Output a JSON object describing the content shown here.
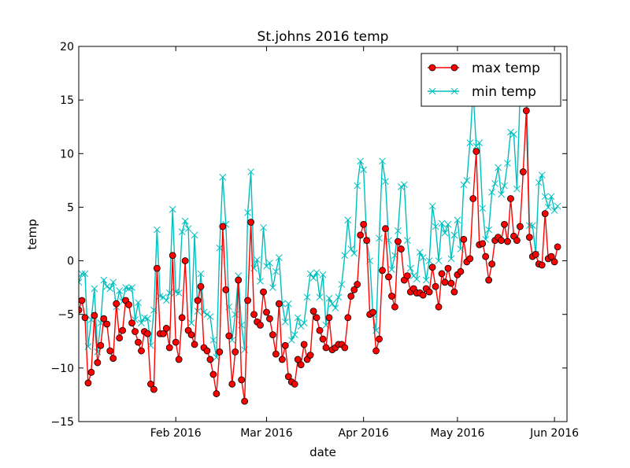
{
  "chart_data": {
    "type": "line",
    "title": "St.johns 2016 temp",
    "xlabel": "date",
    "ylabel": "temp",
    "xlim": [
      "2016-01-01",
      "2016-06-05"
    ],
    "ylim": [
      -15,
      20
    ],
    "yticks": [
      -15,
      -10,
      -5,
      0,
      5,
      10,
      15,
      20
    ],
    "xticks": [
      {
        "date": "2016-02-01",
        "label": "Feb 2016"
      },
      {
        "date": "2016-03-01",
        "label": "Mar 2016"
      },
      {
        "date": "2016-04-01",
        "label": "Apr 2016"
      },
      {
        "date": "2016-05-01",
        "label": "May 2016"
      },
      {
        "date": "2016-06-01",
        "label": "Jun 2016"
      }
    ],
    "grid": false,
    "legend_position": "top-right",
    "series": [
      {
        "name": "max temp",
        "color": "#ff0000",
        "marker": "circle",
        "start_date": "2016-01-01",
        "values": [
          -4.6,
          -3.7,
          -5.3,
          -11.4,
          -10.4,
          -5.1,
          -9.5,
          -7.9,
          -5.4,
          -5.9,
          -8.4,
          -9.1,
          -4.0,
          -7.2,
          -6.5,
          -3.7,
          -4.1,
          -5.8,
          -6.6,
          -7.6,
          -8.4,
          -6.6,
          -6.8,
          -11.5,
          -12.0,
          -0.7,
          -6.8,
          -6.8,
          -6.3,
          -8.1,
          0.5,
          -7.6,
          -9.2,
          -5.3,
          0.0,
          -6.5,
          -6.9,
          -7.8,
          -3.7,
          -2.4,
          -8.1,
          -8.4,
          -9.2,
          -10.6,
          -12.4,
          -8.5,
          3.2,
          -2.7,
          -7.0,
          -11.5,
          -8.5,
          -1.8,
          -11.1,
          -13.1,
          -3.7,
          3.6,
          -5.0,
          -5.7,
          -6.0,
          -2.9,
          -4.8,
          -5.4,
          -6.9,
          -8.7,
          -4.0,
          -9.2,
          -7.9,
          -10.8,
          -11.3,
          -11.5,
          -9.2,
          -9.7,
          -7.8,
          -9.2,
          -8.8,
          -4.7,
          -5.3,
          -6.5,
          -7.3,
          -8.1,
          -5.3,
          -8.3,
          -8.1,
          -7.8,
          -7.8,
          -8.1,
          -5.3,
          -3.3,
          -2.7,
          -2.2,
          2.4,
          3.4,
          1.9,
          -5.0,
          -4.8,
          -8.4,
          -7.3,
          -0.9,
          3.0,
          -1.5,
          -3.3,
          -4.3,
          1.8,
          1.1,
          -1.8,
          -1.4,
          -2.9,
          -2.6,
          -3.0,
          -3.0,
          -3.2,
          -2.6,
          -2.9,
          -0.6,
          -2.4,
          -4.3,
          -1.2,
          -2.0,
          -0.7,
          -2.1,
          -2.9,
          -1.3,
          -1.0,
          2.0,
          -0.1,
          0.2,
          5.8,
          10.2,
          1.5,
          1.6,
          0.4,
          -1.8,
          -0.3,
          1.9,
          2.2,
          1.9,
          3.4,
          1.8,
          5.8,
          2.3,
          1.9,
          3.2,
          8.3,
          14.0,
          2.2,
          0.4,
          0.6,
          -0.3,
          -0.4,
          4.4,
          0.2,
          0.4,
          -0.1,
          1.3
        ]
      },
      {
        "name": "min temp",
        "color": "#00bfbf",
        "marker": "x",
        "start_date": "2016-01-01",
        "values": [
          -2.0,
          -1.2,
          -1.2,
          -8.0,
          -5.5,
          -2.6,
          -8.5,
          -5.8,
          -1.8,
          -2.4,
          -2.6,
          -2.0,
          -4.3,
          -2.8,
          -3.8,
          -2.5,
          -2.6,
          -2.5,
          -5.5,
          -3.9,
          -5.8,
          -5.3,
          -5.4,
          -7.9,
          -4.6,
          2.9,
          -3.3,
          -3.4,
          -3.7,
          -3.0,
          4.8,
          -2.9,
          -3.0,
          2.7,
          3.7,
          3.0,
          -5.8,
          2.4,
          -4.7,
          -1.2,
          -4.8,
          -5.0,
          -5.2,
          -7.4,
          -9.0,
          1.2,
          7.8,
          3.4,
          -4.3,
          -7.4,
          -5.0,
          -1.4,
          -6.0,
          -8.3,
          4.5,
          8.3,
          -0.7,
          0.1,
          -1.9,
          3.1,
          -0.5,
          -0.2,
          -2.5,
          -1.0,
          0.3,
          -4.0,
          -5.7,
          -4.0,
          -7.4,
          -6.9,
          -5.3,
          -6.1,
          -5.8,
          -3.4,
          -1.2,
          -1.6,
          -1.1,
          -3.4,
          -1.3,
          -6.0,
          -3.5,
          -4.0,
          -4.4,
          -3.4,
          -2.2,
          0.5,
          3.8,
          1.1,
          0.7,
          7.0,
          9.3,
          8.5,
          1.9,
          0.0,
          -5.0,
          -6.5,
          2.1,
          9.3,
          7.4,
          1.9,
          -0.8,
          0.5,
          2.8,
          6.9,
          7.1,
          1.9,
          -0.7,
          -1.4,
          -1.7,
          0.8,
          0.3,
          -1.8,
          0.0,
          5.1,
          3.2,
          0.0,
          3.5,
          2.6,
          3.4,
          0.2,
          2.4,
          3.8,
          1.1,
          7.1,
          7.5,
          11.0,
          15.9,
          10.7,
          11.0,
          4.9,
          2.0,
          2.9,
          6.4,
          7.2,
          8.7,
          6.2,
          7.0,
          9.1,
          12.0,
          11.8,
          6.7,
          15.4,
          18.0,
          16.8,
          3.3,
          3.3,
          0.6,
          7.3,
          8.0,
          6.0,
          5.0,
          6.0,
          4.7,
          5.1
        ]
      }
    ]
  }
}
